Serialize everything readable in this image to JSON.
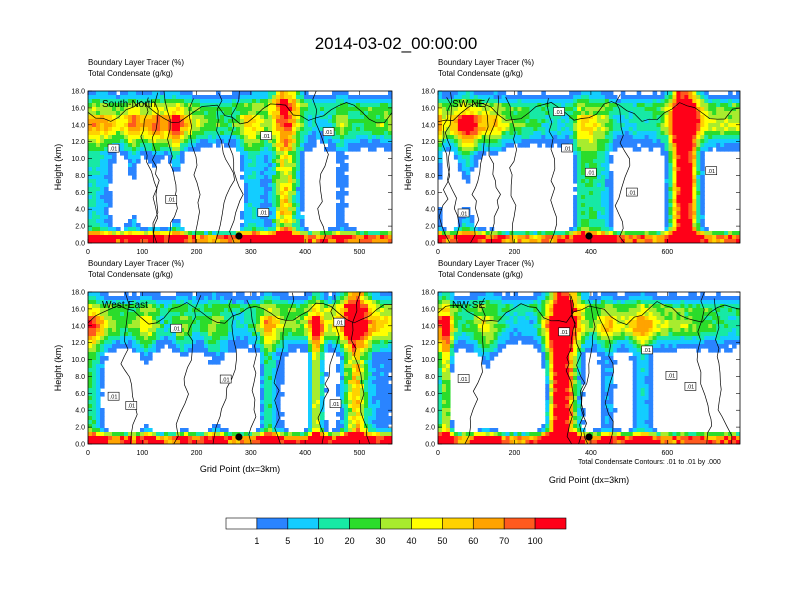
{
  "title": "2014-03-02_00:00:00",
  "footnote": "Total Condensate Contours: .01 to .01 by .000",
  "colors": {
    "levels": [
      "#ffffff",
      "#2a84ff",
      "#13cdff",
      "#17e9a5",
      "#2bdc2b",
      "#a8ec2e",
      "#ffff00",
      "#ffd200",
      "#ffa300",
      "#ff5a1e",
      "#ff0018"
    ],
    "contour": "#000000",
    "marker": "#000000"
  },
  "colorbar": {
    "ticks": [
      "1",
      "5",
      "10",
      "20",
      "30",
      "40",
      "50",
      "60",
      "70",
      "100"
    ]
  },
  "chart_data": [
    {
      "type": "heatmap",
      "panel_label": "South-North",
      "title_lines": [
        "Boundary Layer Tracer   (%)",
        "Total Condensate   (g/kg)"
      ],
      "xlabel": "",
      "ylabel": "Height (km)",
      "xlim": [
        0,
        560
      ],
      "ylim": [
        0,
        18
      ],
      "xticks": [
        0,
        100,
        200,
        300,
        400,
        500
      ],
      "yticks": [
        "0.0",
        "2.0",
        "4.0",
        "6.0",
        "8.0",
        "10.0",
        "12.0",
        "14.0",
        "16.0",
        "18.0"
      ],
      "contour_labels": [
        ".01",
        ".01",
        ".01",
        ".01",
        ".01"
      ],
      "marker_x": 278,
      "convective_core_x": 360
    },
    {
      "type": "heatmap",
      "panel_label": "SW-NE",
      "title_lines": [
        "Boundary Layer Tracer   (%)",
        "Total Condensate   (g/kg)"
      ],
      "xlabel": "",
      "ylabel": "Height (km)",
      "xlim": [
        0,
        790
      ],
      "ylim": [
        0,
        18
      ],
      "xticks": [
        0,
        200,
        400,
        600
      ],
      "yticks": [
        "0.0",
        "2.0",
        "4.0",
        "6.0",
        "8.0",
        "10.0",
        "12.0",
        "14.0",
        "16.0",
        "18.0"
      ],
      "contour_labels": [
        ".01",
        ".01",
        ".01",
        ".01",
        ".01",
        ".01"
      ],
      "marker_x": 395,
      "convective_core_x": 640
    },
    {
      "type": "heatmap",
      "panel_label": "West-East",
      "title_lines": [
        "Boundary Layer Tracer   (%)",
        "Total Condensate   (g/kg)"
      ],
      "xlabel": "Grid Point (dx=3km)",
      "ylabel": "Height (km)",
      "xlim": [
        0,
        560
      ],
      "ylim": [
        0,
        18
      ],
      "xticks": [
        0,
        100,
        200,
        300,
        400,
        500
      ],
      "yticks": [
        "0.0",
        "2.0",
        "4.0",
        "6.0",
        "8.0",
        "10.0",
        "12.0",
        "14.0",
        "16.0",
        "18.0"
      ],
      "contour_labels": [
        ".01",
        ".01",
        ".01",
        ".01",
        ".01",
        ".01"
      ],
      "marker_x": 278,
      "convective_core_x": 490
    },
    {
      "type": "heatmap",
      "panel_label": "NW-SE",
      "title_lines": [
        "Boundary Layer Tracer   (%)",
        "Total Condensate   (g/kg)"
      ],
      "xlabel": "Grid Point (dx=3km)",
      "ylabel": "Height (km)",
      "xlim": [
        0,
        790
      ],
      "ylim": [
        0,
        18
      ],
      "xticks": [
        0,
        200,
        400,
        600
      ],
      "yticks": [
        "0.0",
        "2.0",
        "4.0",
        "6.0",
        "8.0",
        "10.0",
        "12.0",
        "14.0",
        "16.0",
        "18.0"
      ],
      "contour_labels": [
        ".01",
        ".01",
        ".01",
        ".01",
        ".01"
      ],
      "marker_x": 395,
      "convective_core_x": 330
    }
  ]
}
